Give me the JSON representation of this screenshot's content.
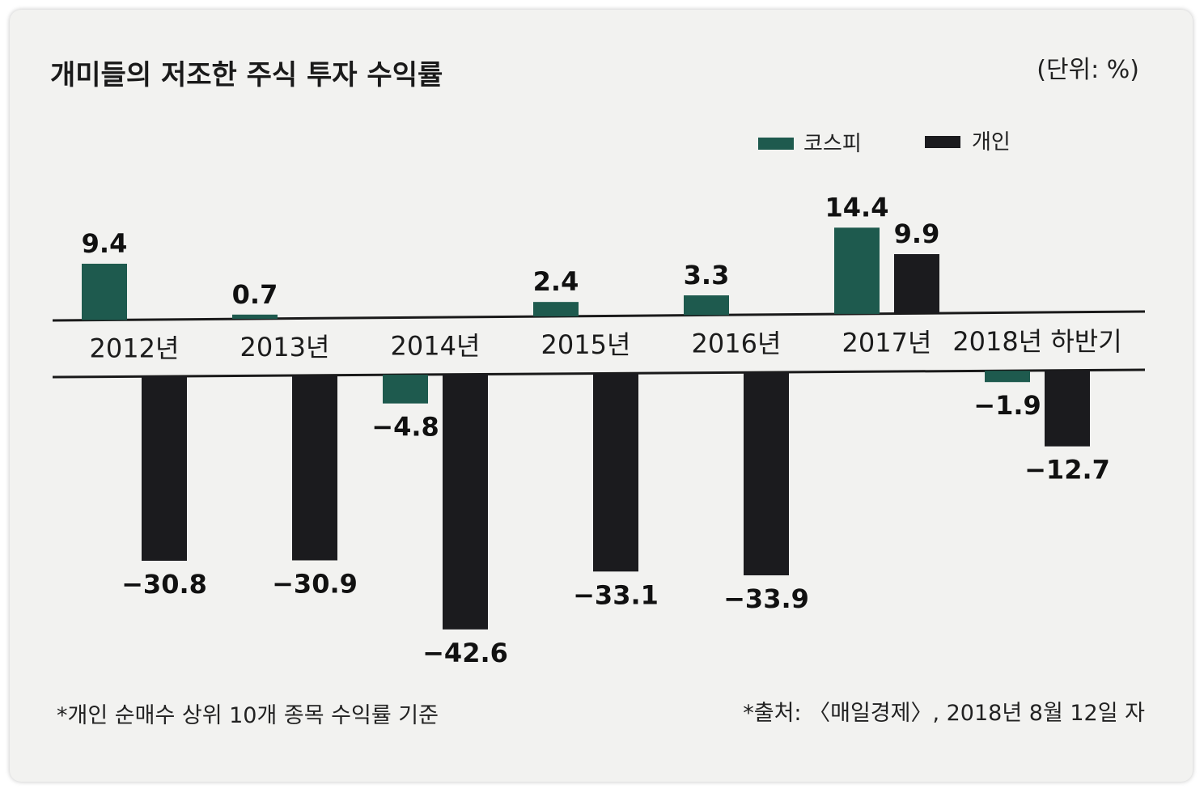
{
  "chart_data": {
    "type": "bar",
    "title": "개미들의 저조한 주식 투자 수익률",
    "unit_label": "(단위: %)",
    "categories": [
      "2012년",
      "2013년",
      "2014년",
      "2015년",
      "2016년",
      "2017년",
      "2018년 하반기"
    ],
    "series": [
      {
        "name": "코스피",
        "color": "#1e5a4e",
        "values": [
          9.4,
          0.7,
          -4.8,
          2.4,
          3.3,
          14.4,
          -1.9
        ],
        "labels": [
          "9.4",
          "0.7",
          "−4.8",
          "2.4",
          "3.3",
          "14.4",
          "−1.9"
        ]
      },
      {
        "name": "개인",
        "color": "#1b1b1e",
        "values": [
          -30.8,
          -30.9,
          -42.6,
          -33.1,
          -33.9,
          9.9,
          -12.7
        ],
        "labels": [
          "−30.8",
          "−30.9",
          "−42.6",
          "−33.1",
          "−33.9",
          "9.9",
          "−12.7"
        ]
      }
    ],
    "footnote": "*개인 순매수 상위 10개 종목 수익률 기준",
    "source": "*출처: 〈매일경제〉, 2018년 8월 12일 자"
  }
}
